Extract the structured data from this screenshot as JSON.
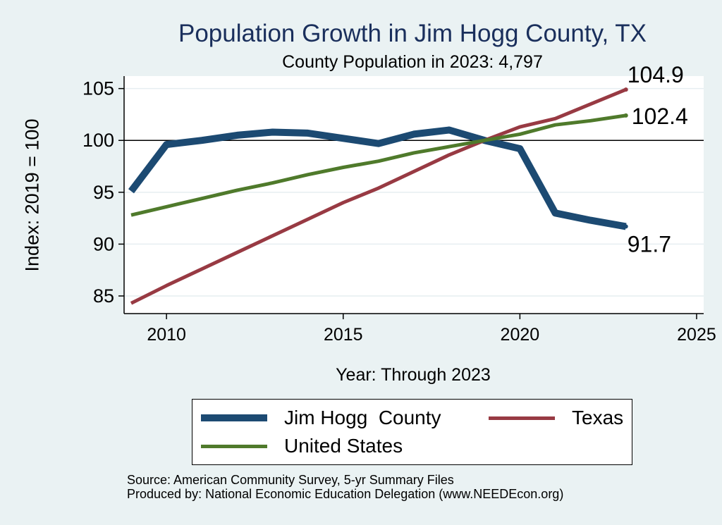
{
  "chart_data": {
    "type": "line",
    "title": "Population Growth in Jim Hogg County, TX",
    "subtitle": "County Population in 2023: 4,797",
    "xlabel": "Year: Through 2023",
    "ylabel": "Index: 2019 = 100",
    "xlim": [
      2008.8,
      2025.2
    ],
    "ylim": [
      83.3,
      106.2
    ],
    "xticks": [
      2010,
      2015,
      2020,
      2025
    ],
    "yticks": [
      85,
      90,
      95,
      100,
      105
    ],
    "reference_line": 100,
    "x": [
      2009,
      2010,
      2011,
      2012,
      2013,
      2014,
      2015,
      2016,
      2017,
      2018,
      2019,
      2020,
      2021,
      2022,
      2023
    ],
    "series": [
      {
        "name": "Jim Hogg  County",
        "color": "#1c4a72",
        "width": 10,
        "values": [
          95.1,
          99.6,
          100.0,
          100.5,
          100.8,
          100.7,
          100.2,
          99.7,
          100.6,
          101.0,
          100.0,
          99.2,
          93.0,
          92.3,
          91.7
        ],
        "end_label": "91.7"
      },
      {
        "name": "Texas",
        "color": "#983a43",
        "width": 5,
        "values": [
          84.3,
          86.0,
          87.6,
          89.2,
          90.8,
          92.4,
          94.0,
          95.4,
          97.0,
          98.6,
          100.0,
          101.3,
          102.1,
          103.5,
          104.9
        ],
        "end_label": "104.9"
      },
      {
        "name": "United States",
        "color": "#4f7a2b",
        "width": 5,
        "values": [
          92.8,
          93.6,
          94.4,
          95.2,
          95.9,
          96.7,
          97.4,
          98.0,
          98.8,
          99.4,
          100.0,
          100.6,
          101.5,
          101.9,
          102.4
        ],
        "end_label": "102.4"
      }
    ]
  },
  "legend": {
    "items": [
      "Jim Hogg  County",
      "Texas",
      "United States"
    ]
  },
  "source": {
    "line1": "Source: American Community Survey, 5-yr Summary Files",
    "line2": "Produced by: National Economic Education Delegation (www.NEEDEcon.org)"
  }
}
